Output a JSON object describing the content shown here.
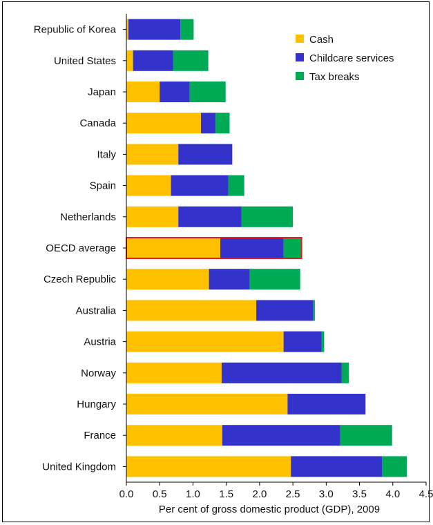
{
  "chart_data": {
    "type": "bar",
    "orientation": "horizontal",
    "stacked": true,
    "categories": [
      "Republic of Korea",
      "United States",
      "Japan",
      "Canada",
      "Italy",
      "Spain",
      "Netherlands",
      "OECD average",
      "Czech Republic",
      "Australia",
      "Austria",
      "Norway",
      "Hungary",
      "France",
      "United Kingdom"
    ],
    "series": [
      {
        "name": "Cash",
        "color": "#FFC000",
        "values": [
          0.03,
          0.1,
          0.5,
          1.12,
          0.78,
          0.67,
          0.78,
          1.41,
          1.24,
          1.95,
          2.36,
          1.43,
          2.42,
          1.44,
          2.47
        ]
      },
      {
        "name": "Childcare services",
        "color": "#3333CC",
        "values": [
          0.78,
          0.6,
          0.45,
          0.22,
          0.81,
          0.86,
          0.95,
          0.95,
          0.61,
          0.85,
          0.57,
          1.8,
          1.17,
          1.77,
          1.37
        ]
      },
      {
        "name": "Tax breaks",
        "color": "#00AA55",
        "values": [
          0.2,
          0.53,
          0.54,
          0.21,
          0.0,
          0.24,
          0.77,
          0.27,
          0.76,
          0.03,
          0.04,
          0.11,
          0.0,
          0.78,
          0.37
        ]
      }
    ],
    "highlight_category": "OECD average",
    "highlight_color": "#E02020",
    "xlabel": "Per cent of gross domestic product (GDP), 2009",
    "ylabel": "",
    "xlim": [
      0,
      4.5
    ],
    "xticks": [
      "0.0",
      "0.5",
      "1.0",
      "1.5",
      "2.0",
      "2.5",
      "3.0",
      "3.5",
      "4.0",
      "4.5"
    ],
    "grid": false,
    "legend_position": "top-right"
  }
}
